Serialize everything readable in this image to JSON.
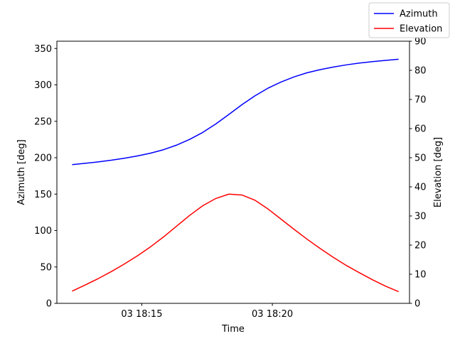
{
  "chart_data": {
    "type": "line",
    "xlabel": "Time",
    "x_tick_labels": [
      "03 18:15",
      "03 18:20"
    ],
    "x_tick_values": [
      "18:15",
      "18:20"
    ],
    "xlim": [
      "18:11:45",
      "18:25:15"
    ],
    "x": [
      "18:12:20",
      "18:12:50",
      "18:13:20",
      "18:13:50",
      "18:14:20",
      "18:14:50",
      "18:15:20",
      "18:15:50",
      "18:16:20",
      "18:16:50",
      "18:17:20",
      "18:17:50",
      "18:18:20",
      "18:18:50",
      "18:19:20",
      "18:19:50",
      "18:20:20",
      "18:20:50",
      "18:21:20",
      "18:21:50",
      "18:22:20",
      "18:22:50",
      "18:23:20",
      "18:23:50",
      "18:24:20",
      "18:24:50"
    ],
    "left_axis": {
      "label": "Azimuth [deg]",
      "ylim": [
        0,
        360
      ],
      "ticks": [
        0,
        50,
        100,
        150,
        200,
        250,
        300,
        350
      ]
    },
    "right_axis": {
      "label": "Elevation [deg]",
      "ylim": [
        0,
        90
      ],
      "ticks": [
        0,
        10,
        20,
        30,
        40,
        50,
        60,
        70,
        80,
        90
      ]
    },
    "series": [
      {
        "name": "Azimuth",
        "axis": "left",
        "color": "#0000ff",
        "values": [
          190.5,
          192.3,
          194.3,
          196.6,
          199.3,
          202.4,
          206.2,
          211.0,
          217.3,
          225.2,
          234.7,
          246.3,
          259.4,
          272.8,
          285.0,
          295.5,
          304.0,
          311.0,
          316.7,
          321.0,
          324.5,
          327.5,
          330.0,
          332.0,
          333.7,
          335.2
        ]
      },
      {
        "name": "Elevation",
        "axis": "right",
        "color": "#ff0000",
        "values": [
          4.2,
          6.3,
          8.5,
          10.9,
          13.5,
          16.3,
          19.4,
          22.8,
          26.5,
          30.2,
          33.5,
          36.0,
          37.5,
          37.2,
          35.4,
          32.4,
          28.9,
          25.4,
          22.0,
          18.8,
          15.8,
          13.0,
          10.5,
          8.1,
          5.9,
          4.0
        ]
      }
    ],
    "legend_position": "top-right",
    "grid": false
  }
}
